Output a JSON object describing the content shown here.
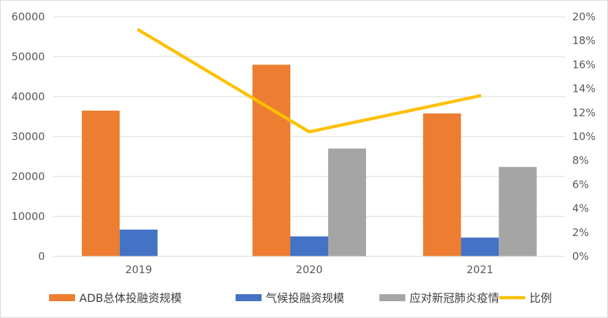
{
  "chart_data": {
    "type": "bar",
    "categories": [
      "2019",
      "2020",
      "2021"
    ],
    "series": [
      {
        "name": "ADB总体投融资规模",
        "type": "bar",
        "axis": "left",
        "color": "#ED7D31",
        "values": [
          36500,
          48000,
          35800
        ]
      },
      {
        "name": "气候投融资规模",
        "type": "bar",
        "axis": "left",
        "color": "#4472C4",
        "values": [
          6700,
          5000,
          4700
        ]
      },
      {
        "name": "应对新冠肺炎疫情",
        "type": "bar",
        "axis": "left",
        "color": "#A5A5A5",
        "values": [
          null,
          27000,
          22400
        ]
      },
      {
        "name": "比例",
        "type": "line",
        "axis": "right",
        "color": "#FFC000",
        "values": [
          18.9,
          10.4,
          13.4
        ]
      }
    ],
    "y_left": {
      "min": 0,
      "max": 60000,
      "ticks": [
        "0",
        "10000",
        "20000",
        "30000",
        "40000",
        "50000",
        "60000"
      ]
    },
    "y_right": {
      "min": 0,
      "max": 20,
      "unit": "%",
      "ticks": [
        "0%",
        "2%",
        "4%",
        "6%",
        "8%",
        "10%",
        "12%",
        "14%",
        "16%",
        "18%",
        "20%"
      ]
    },
    "grid": true,
    "legend_position": "bottom"
  }
}
